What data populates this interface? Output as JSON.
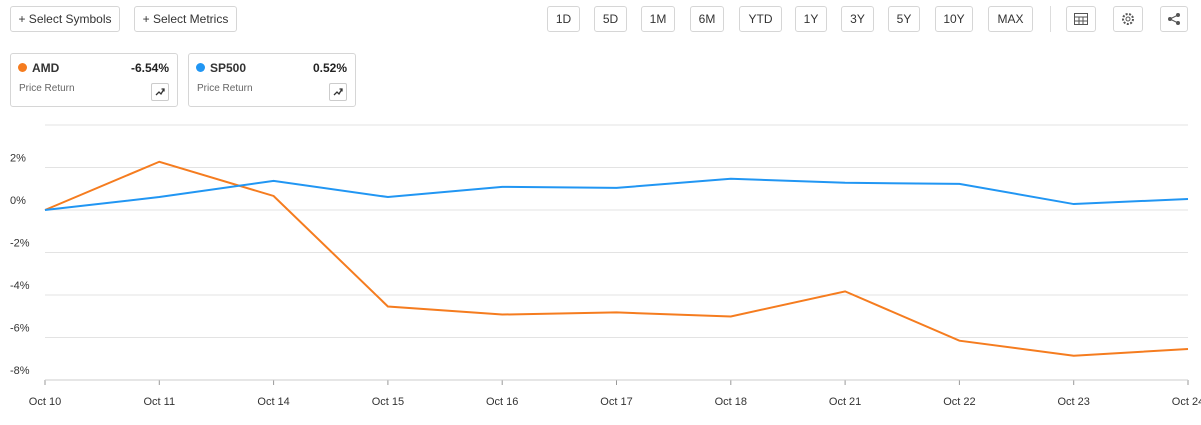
{
  "toolbar": {
    "buttons": [
      "+ Select Symbols",
      "+ Select Metrics"
    ],
    "ranges": [
      "1D",
      "5D",
      "1M",
      "6M",
      "YTD",
      "1Y",
      "3Y",
      "5Y",
      "10Y",
      "MAX"
    ]
  },
  "cards": [
    {
      "change": "-6.54%",
      "metric": "Price Return"
    },
    {
      "change": "0.52%",
      "metric": "Price Return"
    }
  ],
  "chart_data": {
    "type": "line",
    "categories": [
      "Oct 10",
      "Oct 11",
      "Oct 14",
      "Oct 15",
      "Oct 16",
      "Oct 17",
      "Oct 18",
      "Oct 21",
      "Oct 22",
      "Oct 23",
      "Oct 24"
    ],
    "series": [
      {
        "name": "AMD",
        "color": "#f57c1f",
        "values": [
          0,
          2.27,
          0.66,
          -4.54,
          -4.92,
          -4.82,
          -5.01,
          -3.83,
          -6.15,
          -6.86,
          -6.54
        ]
      },
      {
        "name": "SP500",
        "color": "#2196f3",
        "values": [
          0,
          0.61,
          1.37,
          0.61,
          1.09,
          1.04,
          1.47,
          1.28,
          1.23,
          0.28,
          0.52
        ]
      }
    ],
    "ylim": [
      -8,
      4
    ],
    "yticks": [
      {
        "value": 2,
        "label": "2%"
      },
      {
        "value": 0,
        "label": "0%"
      },
      {
        "value": -2,
        "label": "-2%"
      },
      {
        "value": -4,
        "label": "-4%"
      },
      {
        "value": -6,
        "label": "-6%"
      },
      {
        "value": -8,
        "label": "-8%"
      }
    ],
    "grid": true
  }
}
